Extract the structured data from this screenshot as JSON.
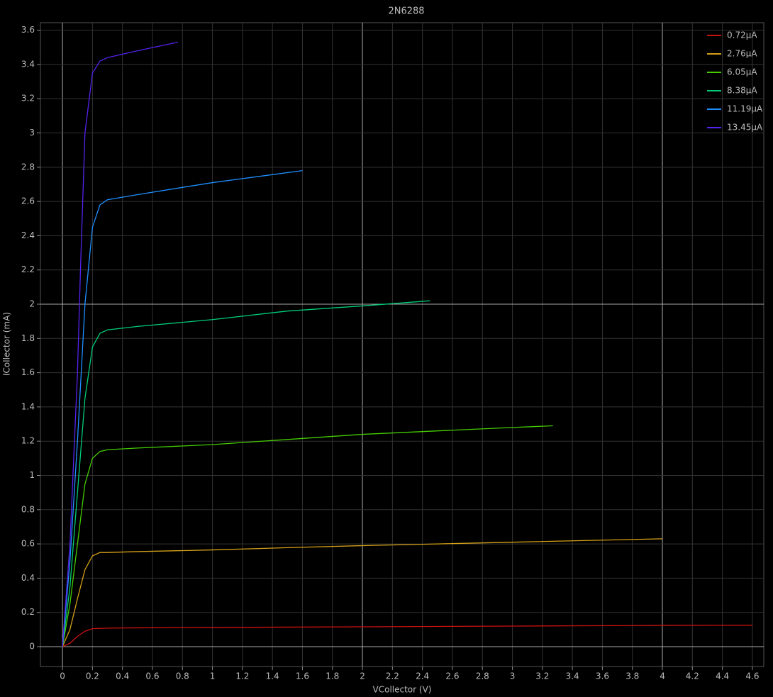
{
  "chart_data": {
    "type": "line",
    "title": "2N6288",
    "x_label": "VCollector (V)",
    "y_label": "ICollector (mA)",
    "xlim": [
      -0.147,
      4.676
    ],
    "ylim": [
      -0.116,
      3.644
    ],
    "xticks": [
      0,
      0.2,
      0.4,
      0.6,
      0.8,
      1,
      1.2,
      1.4,
      1.6,
      1.8,
      2,
      2.2,
      2.4,
      2.6,
      2.8,
      3,
      3.2,
      3.4,
      3.6,
      3.8,
      4,
      4.2,
      4.4,
      4.6
    ],
    "yticks": [
      0,
      0.2,
      0.4,
      0.6,
      0.8,
      1,
      1.2,
      1.4,
      1.6,
      1.8,
      2,
      2.2,
      2.4,
      2.6,
      2.8,
      3,
      3.2,
      3.4,
      3.6
    ],
    "grid": true,
    "legend": "top-right",
    "series": [
      {
        "name": "0.72μA",
        "color": "#cc1111",
        "x": [
          0,
          0.05,
          0.1,
          0.15,
          0.2,
          0.3,
          0.5,
          1,
          1.5,
          2,
          2.5,
          3,
          3.5,
          4,
          4.6
        ],
        "values": [
          0,
          0.02,
          0.06,
          0.09,
          0.105,
          0.108,
          0.11,
          0.112,
          0.114,
          0.116,
          0.118,
          0.12,
          0.122,
          0.124,
          0.125
        ]
      },
      {
        "name": "2.76μA",
        "color": "#d4a017",
        "x": [
          0,
          0.05,
          0.1,
          0.15,
          0.2,
          0.25,
          0.3,
          0.5,
          1,
          1.5,
          2,
          2.5,
          3,
          3.5,
          4
        ],
        "values": [
          0,
          0.1,
          0.28,
          0.45,
          0.53,
          0.55,
          0.55,
          0.555,
          0.565,
          0.578,
          0.59,
          0.6,
          0.61,
          0.62,
          0.63
        ]
      },
      {
        "name": "6.05μA",
        "color": "#44cc00",
        "x": [
          0,
          0.05,
          0.1,
          0.15,
          0.2,
          0.25,
          0.3,
          0.5,
          1,
          1.5,
          2,
          2.5,
          3,
          3.27
        ],
        "values": [
          0,
          0.25,
          0.6,
          0.95,
          1.1,
          1.14,
          1.15,
          1.16,
          1.18,
          1.21,
          1.24,
          1.26,
          1.28,
          1.29
        ]
      },
      {
        "name": "8.38μA",
        "color": "#00cc77",
        "x": [
          0,
          0.05,
          0.1,
          0.15,
          0.2,
          0.25,
          0.3,
          0.5,
          1,
          1.5,
          2,
          2.45
        ],
        "values": [
          0,
          0.35,
          0.9,
          1.45,
          1.75,
          1.83,
          1.85,
          1.87,
          1.91,
          1.96,
          1.99,
          2.02
        ]
      },
      {
        "name": "11.19μA",
        "color": "#1e8fff",
        "x": [
          0,
          0.05,
          0.1,
          0.15,
          0.2,
          0.25,
          0.3,
          0.5,
          1,
          1.6
        ],
        "values": [
          0,
          0.5,
          1.2,
          2.0,
          2.45,
          2.58,
          2.61,
          2.64,
          2.71,
          2.78
        ]
      },
      {
        "name": "13.45μA",
        "color": "#5522ee",
        "x": [
          0,
          0.05,
          0.1,
          0.12,
          0.15,
          0.2,
          0.25,
          0.3,
          0.5,
          0.77
        ],
        "values": [
          0,
          0.6,
          1.6,
          2.2,
          3.0,
          3.35,
          3.42,
          3.44,
          3.48,
          3.53
        ]
      }
    ]
  }
}
